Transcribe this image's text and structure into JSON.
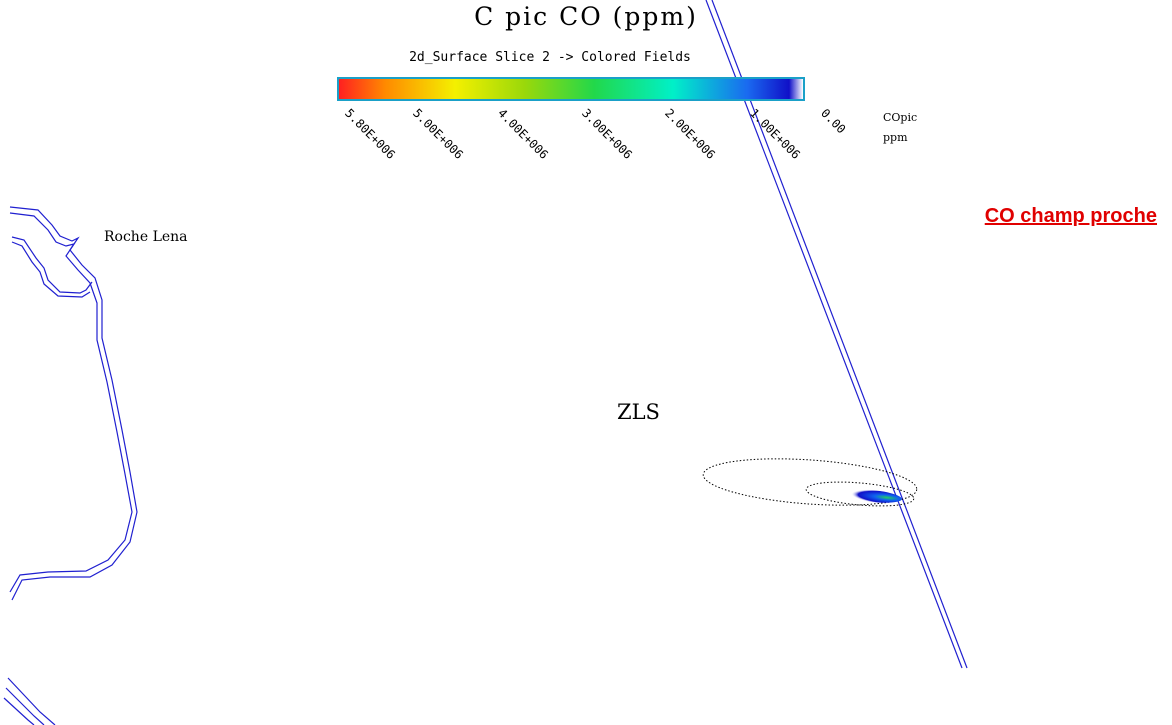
{
  "map": {
    "title": "C pic CO (ppm)",
    "subtitle": "2d_Surface Slice 2 -> Colored Fields",
    "colorbar": {
      "stops": [
        "#ff2020",
        "#ff8a00",
        "#f4f000",
        "#9ad80a",
        "#22d84a",
        "#00f0c8",
        "#1a6af0",
        "#1010c8",
        "#ffffff"
      ],
      "tick_labels": [
        "5.80E+006",
        "5.00E+006",
        "4.00E+006",
        "3.00E+006",
        "2.00E+006",
        "1.00E+006",
        "0.00"
      ],
      "variable": "COpic",
      "unit": "ppm"
    },
    "place_label_rock": "Roche Lena",
    "place_label_zone": "ZLS",
    "zone_caption": "CO champ proche",
    "colors": {
      "coastline": "#2020d0",
      "caption": "#e00000",
      "colorbar_border": "#1aa0c8"
    }
  }
}
